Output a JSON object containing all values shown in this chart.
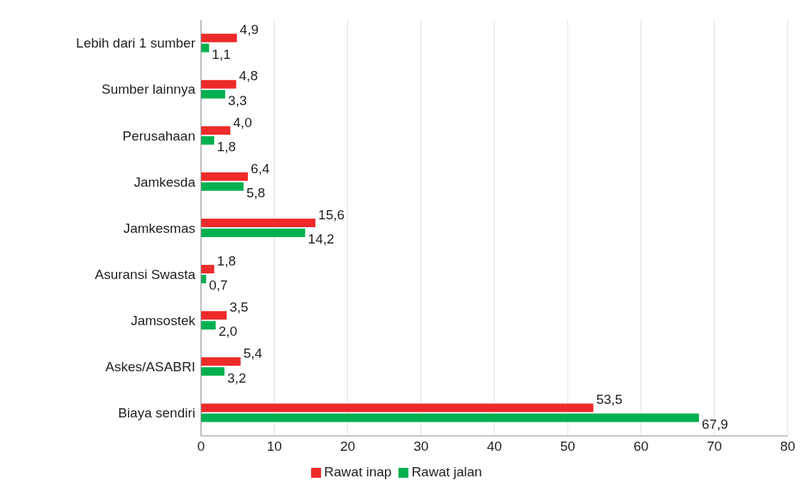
{
  "chart_data": {
    "type": "bar",
    "orientation": "horizontal",
    "categories": [
      "Lebih dari 1 sumber",
      "Sumber lainnya",
      "Perusahaan",
      "Jamkesda",
      "Jamkesmas",
      "Asuransi Swasta",
      "Jamsostek",
      "Askes/ASABRI",
      "Biaya sendiri"
    ],
    "series": [
      {
        "name": "Rawat inap",
        "color": "#ee2a2a",
        "values": [
          4.9,
          4.8,
          4.0,
          6.4,
          15.6,
          1.8,
          3.5,
          5.4,
          53.5
        ],
        "value_labels": [
          "4,9",
          "4,8",
          "4,0",
          "6,4",
          "15,6",
          "1,8",
          "3,5",
          "5,4",
          "53,5"
        ]
      },
      {
        "name": "Rawat jalan",
        "color": "#00b04f",
        "values": [
          1.1,
          3.3,
          1.8,
          5.8,
          14.2,
          0.7,
          2.0,
          3.2,
          67.9
        ],
        "value_labels": [
          "1,1",
          "3,3",
          "1,8",
          "5,8",
          "14,2",
          "0,7",
          "2,0",
          "3,2",
          "67,9"
        ]
      }
    ],
    "xlim": [
      0,
      80
    ],
    "xticks": [
      0,
      10,
      20,
      30,
      40,
      50,
      60,
      70,
      80
    ],
    "grid": "x",
    "legend": "bottom"
  }
}
